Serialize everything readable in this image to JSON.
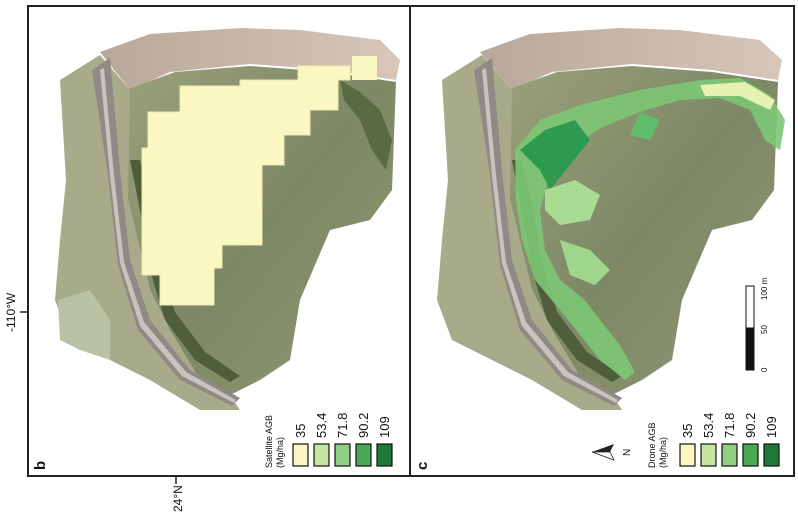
{
  "coords": {
    "lon": "-110°W",
    "lat": "24°N"
  },
  "panels": [
    {
      "id": "b",
      "label": "b",
      "legend": {
        "title_line1": "Satellite AGB",
        "title_line2": "(Mg/ha)",
        "items": [
          {
            "value": "35",
            "color": "#fbf7c3"
          },
          {
            "value": "53.4",
            "color": "#c6e5a1"
          },
          {
            "value": "71.8",
            "color": "#8fce83"
          },
          {
            "value": "90.2",
            "color": "#4aa857"
          },
          {
            "value": "109",
            "color": "#1f7a3a"
          }
        ]
      }
    },
    {
      "id": "c",
      "label": "c",
      "legend": {
        "title_line1": "Drone AGB",
        "title_line2": "(Mg/ha)",
        "items": [
          {
            "value": "35",
            "color": "#fbf7c3"
          },
          {
            "value": "53.4",
            "color": "#c6e5a1"
          },
          {
            "value": "71.8",
            "color": "#8fce83"
          },
          {
            "value": "90.2",
            "color": "#4aa857"
          },
          {
            "value": "109",
            "color": "#1f7a3a"
          }
        ]
      },
      "north": "N",
      "scalebar": {
        "labels": [
          "0",
          "50",
          "100 m"
        ]
      }
    }
  ],
  "colors": {
    "water": "#7f8a66",
    "sand": "#cbb7a6",
    "road": "#9a9590",
    "mangrove_dark": "#4b5a3a"
  }
}
